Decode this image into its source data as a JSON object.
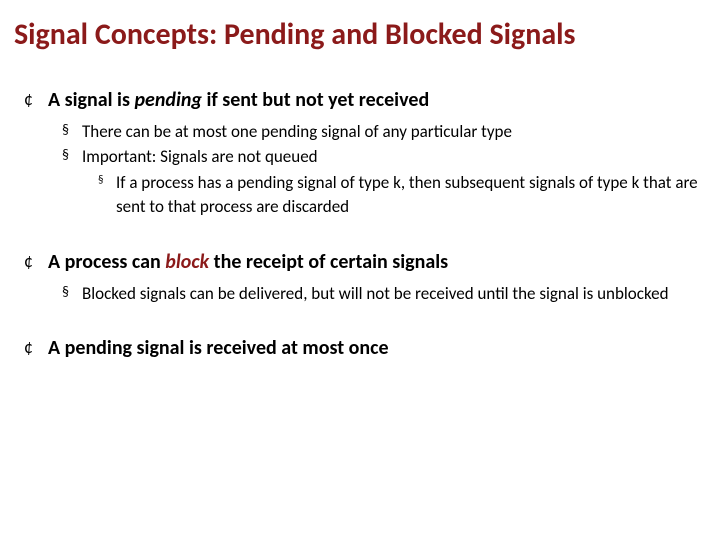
{
  "title": "Signal Concepts: Pending and Blocked Signals",
  "s1": {
    "head_pre": "A signal is ",
    "head_kw": "pending",
    "head_post": " if sent but not yet received",
    "b1": "There can be at most one pending signal of any particular type",
    "b2": "Important: Signals are not queued",
    "b2a": "If a process has a pending signal of type k, then subsequent signals of type k that are sent to that process are discarded"
  },
  "s2": {
    "head_pre": "A process can ",
    "head_kw": "block",
    "head_post": " the receipt of certain signals",
    "b1": "Blocked signals can be delivered, but will not be received until the signal is unblocked"
  },
  "s3": {
    "head": "A pending signal is received at most once"
  },
  "bullets": {
    "l1": "¢",
    "l2": "§",
    "l3": "§"
  },
  "colors": {
    "title": "#8b1a1a",
    "text": "#000000",
    "bg": "#ffffff"
  }
}
